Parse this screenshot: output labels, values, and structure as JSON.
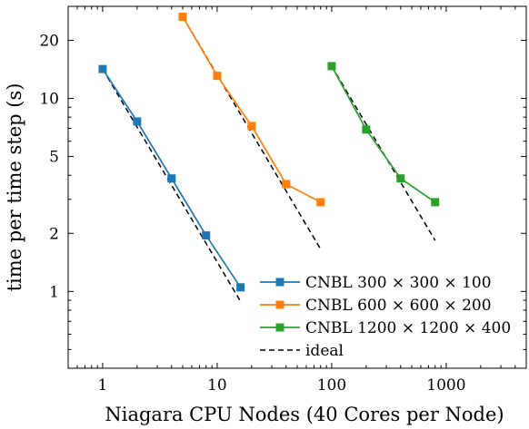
{
  "chart_data": {
    "type": "line",
    "xlabel": "Niagara CPU Nodes (40 Cores per Node)",
    "ylabel": "time per time step (s)",
    "xscale": "log",
    "yscale": "log",
    "xlim": [
      0.5,
      5000
    ],
    "ylim": [
      0.4,
      30
    ],
    "x_ticks": [
      1,
      10,
      100,
      1000
    ],
    "x_tick_labels": [
      "1",
      "10",
      "100",
      "1000"
    ],
    "y_ticks": [
      1,
      2,
      5,
      10,
      20
    ],
    "y_tick_labels": [
      "1",
      "2",
      "5",
      "10",
      "20"
    ],
    "grid": false,
    "legend_position": "bottom-right",
    "series": [
      {
        "name": "CNBL 300 × 300 × 100",
        "color": "#1f77b4",
        "marker": "square",
        "linestyle": "solid",
        "x": [
          1,
          2,
          4,
          8,
          16
        ],
        "y": [
          14.2,
          7.6,
          3.85,
          1.95,
          1.05
        ]
      },
      {
        "name": "CNBL 600 × 600 × 200",
        "color": "#ff7f0e",
        "marker": "square",
        "linestyle": "solid",
        "x": [
          5,
          10,
          20,
          40,
          80
        ],
        "y": [
          26.5,
          13.1,
          7.2,
          3.6,
          2.9
        ]
      },
      {
        "name": "CNBL 1200 × 1200 × 400",
        "color": "#2ca02c",
        "marker": "square",
        "linestyle": "solid",
        "x": [
          100,
          200,
          400,
          800
        ],
        "y": [
          14.7,
          6.9,
          3.85,
          2.9
        ]
      },
      {
        "name": "ideal",
        "color": "#000000",
        "marker": "none",
        "linestyle": "dashed",
        "segments": [
          {
            "x": [
              1,
              16
            ],
            "y": [
              14.2,
              0.8875
            ]
          },
          {
            "x": [
              5,
              80
            ],
            "y": [
              26.5,
              1.656
            ]
          },
          {
            "x": [
              100,
              800
            ],
            "y": [
              14.7,
              1.8375
            ]
          }
        ]
      }
    ]
  }
}
